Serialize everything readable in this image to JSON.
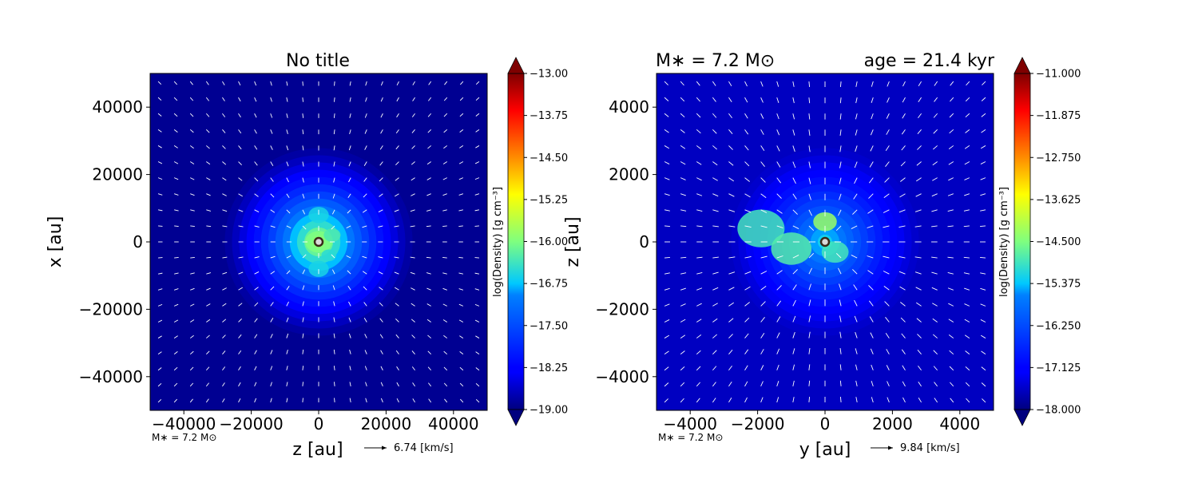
{
  "chart_data": [
    {
      "type": "heatmap",
      "title": "No title",
      "title_left": "",
      "title_right": "",
      "xlabel": "z [au]",
      "ylabel": "x [au]",
      "xlim": [
        -50000,
        50000
      ],
      "ylim": [
        -50000,
        50000
      ],
      "xticks": [
        -40000,
        -20000,
        0,
        20000,
        40000
      ],
      "yticks": [
        -40000,
        -20000,
        0,
        20000,
        40000
      ],
      "xtick_labels": [
        "−40000",
        "−20000",
        "0",
        "20000",
        "40000"
      ],
      "ytick_labels": [
        "−40000",
        "−20000",
        "0",
        "20000",
        "40000"
      ],
      "colorbar": {
        "label": "log(Density) [g cm⁻³]",
        "min": -19.0,
        "max": -13.0,
        "ticks": [
          "−19.00",
          "−18.25",
          "−17.50",
          "−16.75",
          "−16.00",
          "−15.25",
          "−14.50",
          "−13.75",
          "−13.00"
        ]
      },
      "density_field": {
        "background": -18.9,
        "peak": -15.5,
        "envelope_radius_au": 30000,
        "core": [
          {
            "x": 0,
            "y": 0,
            "r": 4000,
            "v": -16.0
          },
          {
            "x": 0,
            "y": 8000,
            "r": 3000,
            "v": -16.6
          },
          {
            "x": 0,
            "y": -8000,
            "r": 3000,
            "v": -16.6
          },
          {
            "x": 4000,
            "y": 2000,
            "r": 2500,
            "v": -16.3
          },
          {
            "x": 3000,
            "y": -4000,
            "r": 2200,
            "v": -16.5
          }
        ]
      },
      "star": {
        "x": 0,
        "y": 0
      },
      "footnote": "M∗ = 7.2 M⊙",
      "vector_key": "6.74 [km/s]",
      "arrow_scale": 0.35
    },
    {
      "type": "heatmap",
      "title": "",
      "title_left": "M∗ = 7.2 M⊙",
      "title_right": "age = 21.4 kyr",
      "xlabel": "y [au]",
      "ylabel": "z [au]",
      "xlim": [
        -5000,
        5000
      ],
      "ylim": [
        -5000,
        5000
      ],
      "xticks": [
        -4000,
        -2000,
        0,
        2000,
        4000
      ],
      "yticks": [
        -4000,
        -2000,
        0,
        2000,
        4000
      ],
      "xtick_labels": [
        "−4000",
        "−2000",
        "0",
        "2000",
        "4000"
      ],
      "ytick_labels": [
        "−4000",
        "−2000",
        "0",
        "2000",
        "4000"
      ],
      "colorbar": {
        "label": "log(Density) [g cm⁻³]",
        "min": -18.0,
        "max": -11.0,
        "ticks": [
          "−18.000",
          "−17.125",
          "−16.250",
          "−15.375",
          "−14.500",
          "−13.625",
          "−12.750",
          "−11.875",
          "−11.000"
        ]
      },
      "density_field": {
        "background": -17.6,
        "peak": -15.0,
        "envelope_radius_au": 3000,
        "core": [
          {
            "x": -1900,
            "y": 400,
            "r": 700,
            "v": -14.9
          },
          {
            "x": -1000,
            "y": -200,
            "r": 600,
            "v": -14.8
          },
          {
            "x": 0,
            "y": 600,
            "r": 350,
            "v": -14.3
          },
          {
            "x": 300,
            "y": -300,
            "r": 400,
            "v": -14.9
          }
        ]
      },
      "star": {
        "x": 0,
        "y": 0
      },
      "footnote": "M∗ = 7.2 M⊙",
      "vector_key": "9.84 [km/s]",
      "arrow_scale": 0.7
    }
  ]
}
